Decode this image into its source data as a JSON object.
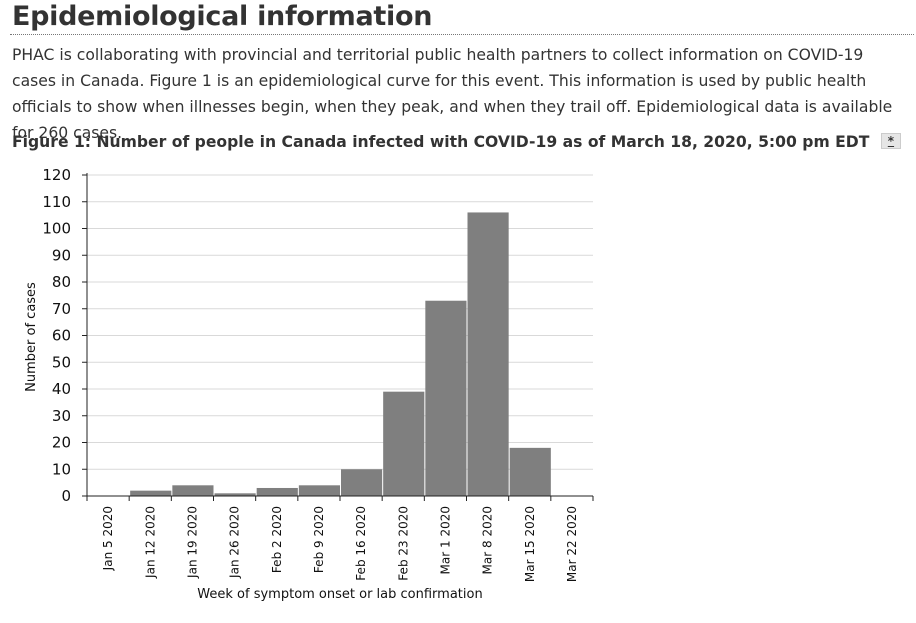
{
  "page": {
    "heading": "Epidemiological information",
    "intro": "PHAC is collaborating with provincial and territorial public health partners to collect information on COVID-19 cases in Canada. Figure 1 is an epidemiological curve for this event. This information is used by public health officials to show when illnesses begin, when they peak, and when they trail off. Epidemiological data is available for 260 cases.",
    "figure_caption": "Figure 1: Number of people in Canada infected with COVID-19 as of March 18, 2020, 5:00 pm EDT",
    "footnote_link": "*"
  },
  "chart_data": {
    "type": "bar",
    "title": "",
    "xlabel": "Week of symptom onset or lab confirmation",
    "ylabel": "Number of cases",
    "ylim": [
      0,
      120
    ],
    "yticks": [
      0,
      10,
      20,
      30,
      40,
      50,
      60,
      70,
      80,
      90,
      100,
      110,
      120
    ],
    "grid": true,
    "categories": [
      "Jan 5 2020",
      "Jan 12 2020",
      "Jan 19 2020",
      "Jan 26 2020",
      "Feb 2 2020",
      "Feb 9 2020",
      "Feb 16 2020",
      "Feb 23 2020",
      "Mar 1 2020",
      "Mar 8 2020",
      "Mar 15 2020",
      "Mar 22 2020"
    ],
    "values": [
      0,
      2,
      4,
      1,
      3,
      4,
      10,
      39,
      73,
      106,
      18,
      0
    ],
    "bar_color": "#7f7f7f",
    "grid_color": "#d9d9d9"
  }
}
